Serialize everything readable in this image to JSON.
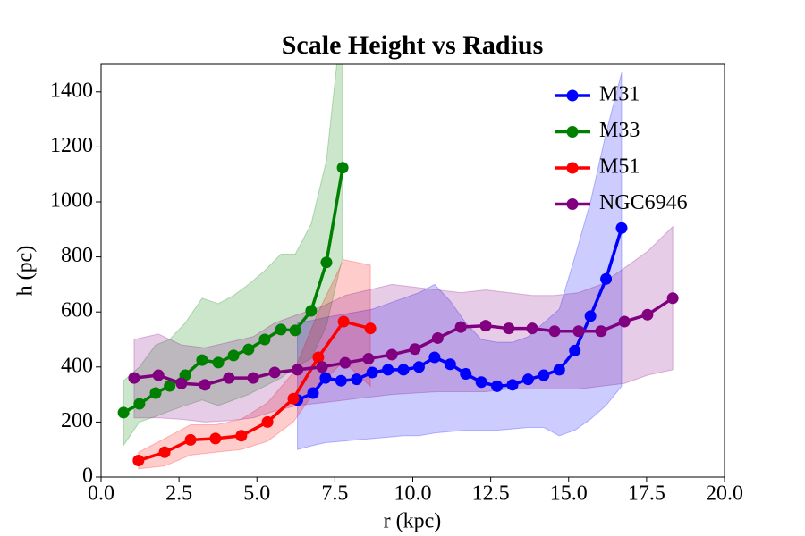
{
  "chart_data": {
    "type": "line",
    "title": "Scale Height vs Radius",
    "xlabel": "r (kpc)",
    "ylabel": "h (pc)",
    "xlim": [
      0,
      20
    ],
    "ylim": [
      0,
      1500
    ],
    "xticks": [
      {
        "value": 0,
        "label": "0.0"
      },
      {
        "value": 2.5,
        "label": "2.5"
      },
      {
        "value": 5,
        "label": "5.0"
      },
      {
        "value": 7.5,
        "label": "7.5"
      },
      {
        "value": 10,
        "label": "10.0"
      },
      {
        "value": 12.5,
        "label": "12.5"
      },
      {
        "value": 15,
        "label": "15.0"
      },
      {
        "value": 17.5,
        "label": "17.5"
      },
      {
        "value": 20,
        "label": "20.0"
      }
    ],
    "yticks": [
      0,
      200,
      400,
      600,
      800,
      1000,
      1200,
      1400
    ],
    "legend": "upper right",
    "series": [
      {
        "name": "M31",
        "color": "#0000ff",
        "x": [
          6.3,
          6.8,
          7.2,
          7.7,
          8.2,
          8.7,
          9.2,
          9.7,
          10.2,
          10.7,
          11.2,
          11.7,
          12.2,
          12.7,
          13.2,
          13.7,
          14.2,
          14.7,
          15.2,
          15.7,
          16.2,
          16.7
        ],
        "values": [
          280,
          305,
          360,
          350,
          355,
          380,
          390,
          390,
          400,
          435,
          410,
          375,
          345,
          330,
          335,
          355,
          370,
          390,
          460,
          585,
          720,
          905
        ],
        "lower": [
          100,
          115,
          125,
          130,
          135,
          140,
          145,
          150,
          150,
          160,
          165,
          170,
          170,
          170,
          175,
          180,
          180,
          150,
          170,
          210,
          260,
          330
        ],
        "upper": [
          560,
          570,
          580,
          590,
          600,
          610,
          630,
          650,
          670,
          700,
          640,
          560,
          500,
          490,
          490,
          510,
          560,
          610,
          800,
          1000,
          1250,
          1470
        ]
      },
      {
        "name": "M33",
        "color": "#008000",
        "x": [
          0.72,
          1.23,
          1.75,
          2.2,
          2.7,
          3.24,
          3.76,
          4.25,
          4.73,
          5.25,
          5.77,
          6.23,
          6.74,
          7.23,
          7.75
        ],
        "values": [
          234,
          266,
          305,
          331,
          370,
          425,
          416,
          442,
          464,
          500,
          536,
          533,
          604,
          780,
          1124
        ],
        "lower": [
          115,
          200,
          220,
          240,
          260,
          280,
          260,
          280,
          300,
          330,
          360,
          400,
          430,
          550,
          800
        ],
        "upper": [
          350,
          400,
          480,
          500,
          560,
          650,
          630,
          660,
          700,
          750,
          810,
          810,
          920,
          1150,
          1700
        ]
      },
      {
        "name": "M51",
        "color": "#ff0000",
        "x": [
          1.2,
          2.04,
          2.87,
          3.67,
          4.5,
          5.34,
          6.17,
          6.97,
          7.78,
          8.64
        ],
        "values": [
          60,
          90,
          135,
          140,
          150,
          200,
          285,
          435,
          565,
          540
        ],
        "lower": [
          30,
          40,
          80,
          90,
          100,
          130,
          200,
          330,
          420,
          330
        ],
        "upper": [
          90,
          140,
          190,
          190,
          210,
          270,
          380,
          600,
          790,
          770
        ]
      },
      {
        "name": "NGC6946",
        "color": "#800080",
        "x": [
          1.06,
          1.84,
          2.58,
          3.33,
          4.1,
          4.88,
          5.57,
          6.3,
          7.09,
          7.83,
          8.58,
          9.33,
          10.07,
          10.8,
          11.54,
          12.34,
          13.08,
          13.83,
          14.55,
          15.32,
          16.04,
          16.79,
          17.53,
          18.34
        ],
        "values": [
          360,
          370,
          340,
          335,
          360,
          360,
          380,
          390,
          400,
          415,
          430,
          445,
          465,
          505,
          545,
          550,
          540,
          540,
          530,
          530,
          530,
          565,
          590,
          650
        ],
        "lower": [
          215,
          215,
          210,
          200,
          205,
          215,
          240,
          260,
          270,
          280,
          290,
          300,
          305,
          310,
          310,
          310,
          320,
          320,
          320,
          320,
          330,
          340,
          370,
          390
        ],
        "upper": [
          500,
          520,
          480,
          470,
          490,
          510,
          560,
          590,
          620,
          660,
          680,
          700,
          690,
          680,
          670,
          680,
          670,
          660,
          660,
          670,
          700,
          760,
          820,
          910
        ]
      }
    ]
  }
}
